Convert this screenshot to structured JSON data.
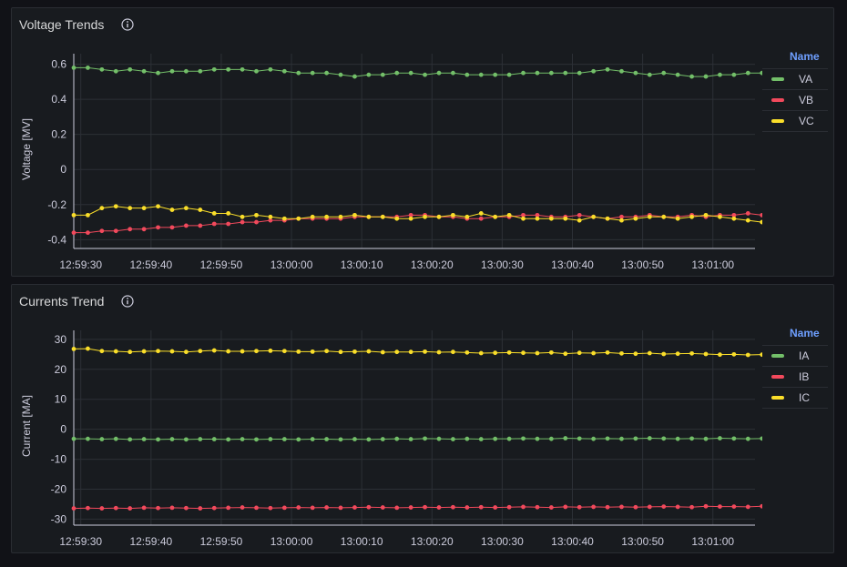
{
  "colors": {
    "green": "#73bf69",
    "red": "#f2495c",
    "yellow": "#fade2a",
    "grid": "#2c3036",
    "axis_text": "#ccccdc"
  },
  "chart_data": [
    {
      "type": "line",
      "panel_title": "Voltage Trends",
      "ylabel": "Voltage [MV]",
      "legend_title": "Name",
      "legend_placement": "right",
      "grid": true,
      "ylim": [
        -0.45,
        0.66
      ],
      "yticks": [
        {
          "value": 0.6,
          "label": "0.6"
        },
        {
          "value": 0.4,
          "label": "0.4"
        },
        {
          "value": 0.2,
          "label": "0.2"
        },
        {
          "value": 0,
          "label": "0"
        },
        {
          "value": -0.2,
          "label": "-0.2"
        },
        {
          "value": -0.4,
          "label": "-0.4"
        }
      ],
      "xlim": [
        "12:59:29",
        "13:01:06"
      ],
      "xticks": [
        "12:59:30",
        "12:59:40",
        "12:59:50",
        "13:00:00",
        "13:00:10",
        "13:00:20",
        "13:00:30",
        "13:00:40",
        "13:00:50",
        "13:01:00"
      ],
      "x_start": "12:59:29",
      "x_step_seconds": 2,
      "series": [
        {
          "name": "VA",
          "color": "#73bf69",
          "values": [
            0.58,
            0.58,
            0.57,
            0.56,
            0.57,
            0.56,
            0.55,
            0.56,
            0.56,
            0.56,
            0.57,
            0.57,
            0.57,
            0.56,
            0.57,
            0.56,
            0.55,
            0.55,
            0.55,
            0.54,
            0.53,
            0.54,
            0.54,
            0.55,
            0.55,
            0.54,
            0.55,
            0.55,
            0.54,
            0.54,
            0.54,
            0.54,
            0.55,
            0.55,
            0.55,
            0.55,
            0.55,
            0.56,
            0.57,
            0.56,
            0.55,
            0.54,
            0.55,
            0.54,
            0.53,
            0.53,
            0.54,
            0.54,
            0.55,
            0.55
          ]
        },
        {
          "name": "VB",
          "color": "#f2495c",
          "values": [
            -0.36,
            -0.36,
            -0.35,
            -0.35,
            -0.34,
            -0.34,
            -0.33,
            -0.33,
            -0.32,
            -0.32,
            -0.31,
            -0.31,
            -0.3,
            -0.3,
            -0.29,
            -0.29,
            -0.28,
            -0.28,
            -0.28,
            -0.28,
            -0.27,
            -0.27,
            -0.27,
            -0.27,
            -0.26,
            -0.26,
            -0.27,
            -0.27,
            -0.28,
            -0.28,
            -0.27,
            -0.27,
            -0.26,
            -0.26,
            -0.27,
            -0.27,
            -0.26,
            -0.27,
            -0.28,
            -0.27,
            -0.27,
            -0.26,
            -0.27,
            -0.27,
            -0.26,
            -0.27,
            -0.26,
            -0.26,
            -0.25,
            -0.26
          ]
        },
        {
          "name": "VC",
          "color": "#fade2a",
          "values": [
            -0.26,
            -0.26,
            -0.22,
            -0.21,
            -0.22,
            -0.22,
            -0.21,
            -0.23,
            -0.22,
            -0.23,
            -0.25,
            -0.25,
            -0.27,
            -0.26,
            -0.27,
            -0.28,
            -0.28,
            -0.27,
            -0.27,
            -0.27,
            -0.26,
            -0.27,
            -0.27,
            -0.28,
            -0.28,
            -0.27,
            -0.27,
            -0.26,
            -0.27,
            -0.25,
            -0.27,
            -0.26,
            -0.28,
            -0.28,
            -0.28,
            -0.28,
            -0.29,
            -0.27,
            -0.28,
            -0.29,
            -0.28,
            -0.27,
            -0.27,
            -0.28,
            -0.27,
            -0.26,
            -0.27,
            -0.28,
            -0.29,
            -0.3
          ]
        }
      ]
    },
    {
      "type": "line",
      "panel_title": "Currents Trend",
      "ylabel": "Current [MA]",
      "legend_title": "Name",
      "legend_placement": "right",
      "grid": true,
      "ylim": [
        -32,
        33
      ],
      "yticks": [
        {
          "value": 30,
          "label": "30"
        },
        {
          "value": 20,
          "label": "20"
        },
        {
          "value": 10,
          "label": "10"
        },
        {
          "value": 0,
          "label": "0"
        },
        {
          "value": -10,
          "label": "-10"
        },
        {
          "value": -20,
          "label": "-20"
        },
        {
          "value": -30,
          "label": "-30"
        }
      ],
      "xlim": [
        "12:59:29",
        "13:01:06"
      ],
      "xticks": [
        "12:59:30",
        "12:59:40",
        "12:59:50",
        "13:00:00",
        "13:00:10",
        "13:00:20",
        "13:00:30",
        "13:00:40",
        "13:00:50",
        "13:01:00"
      ],
      "x_start": "12:59:29",
      "x_step_seconds": 2,
      "series": [
        {
          "name": "IA",
          "color": "#73bf69",
          "values": [
            -3.2,
            -3.2,
            -3.3,
            -3.2,
            -3.4,
            -3.3,
            -3.4,
            -3.3,
            -3.4,
            -3.3,
            -3.3,
            -3.4,
            -3.3,
            -3.4,
            -3.3,
            -3.3,
            -3.4,
            -3.3,
            -3.3,
            -3.4,
            -3.3,
            -3.4,
            -3.3,
            -3.2,
            -3.3,
            -3.1,
            -3.2,
            -3.3,
            -3.2,
            -3.3,
            -3.2,
            -3.2,
            -3.1,
            -3.2,
            -3.2,
            -3.0,
            -3.1,
            -3.2,
            -3.1,
            -3.2,
            -3.1,
            -3.0,
            -3.1,
            -3.2,
            -3.1,
            -3.2,
            -3.0,
            -3.1,
            -3.2,
            -3.1
          ]
        },
        {
          "name": "IB",
          "color": "#f2495c",
          "values": [
            -26.4,
            -26.3,
            -26.4,
            -26.3,
            -26.4,
            -26.2,
            -26.3,
            -26.2,
            -26.3,
            -26.4,
            -26.3,
            -26.2,
            -26.1,
            -26.2,
            -26.3,
            -26.2,
            -26.1,
            -26.2,
            -26.1,
            -26.2,
            -26.1,
            -26.0,
            -26.1,
            -26.2,
            -26.1,
            -26.0,
            -26.1,
            -26.0,
            -26.1,
            -26.0,
            -26.1,
            -26.0,
            -25.9,
            -26.0,
            -26.1,
            -25.9,
            -26.0,
            -25.9,
            -26.0,
            -25.9,
            -26.0,
            -25.9,
            -25.8,
            -25.9,
            -26.0,
            -25.7,
            -25.8,
            -25.8,
            -25.9,
            -25.7
          ]
        },
        {
          "name": "IC",
          "color": "#fade2a",
          "values": [
            26.8,
            26.9,
            26.1,
            26.0,
            25.8,
            26.0,
            26.1,
            26.0,
            25.8,
            26.1,
            26.3,
            26.0,
            26.0,
            26.1,
            26.2,
            26.1,
            25.9,
            25.9,
            26.1,
            25.8,
            25.9,
            26.0,
            25.7,
            25.8,
            25.8,
            25.9,
            25.7,
            25.8,
            25.6,
            25.4,
            25.5,
            25.6,
            25.5,
            25.4,
            25.6,
            25.2,
            25.5,
            25.4,
            25.6,
            25.3,
            25.2,
            25.4,
            25.1,
            25.2,
            25.3,
            25.1,
            24.9,
            25.0,
            24.8,
            24.9
          ]
        }
      ]
    }
  ]
}
